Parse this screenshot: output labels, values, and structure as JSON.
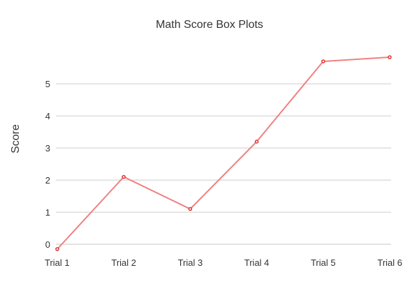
{
  "chart_data": {
    "type": "line",
    "title": "Math Score Box Plots",
    "xlabel": "",
    "ylabel": "Score",
    "categories": [
      "Trial 1",
      "Trial 2",
      "Trial 3",
      "Trial 4",
      "Trial 5",
      "Trial 6"
    ],
    "series": [
      {
        "values": [
          -0.15,
          2.1,
          1.1,
          3.2,
          5.7,
          5.83
        ],
        "color": "#f08080",
        "marker_color": "#e03030"
      }
    ],
    "yticks": [
      0,
      1,
      2,
      3,
      4,
      5
    ],
    "ylim": [
      -0.15,
      5.83
    ],
    "grid": true,
    "legend": "none"
  }
}
